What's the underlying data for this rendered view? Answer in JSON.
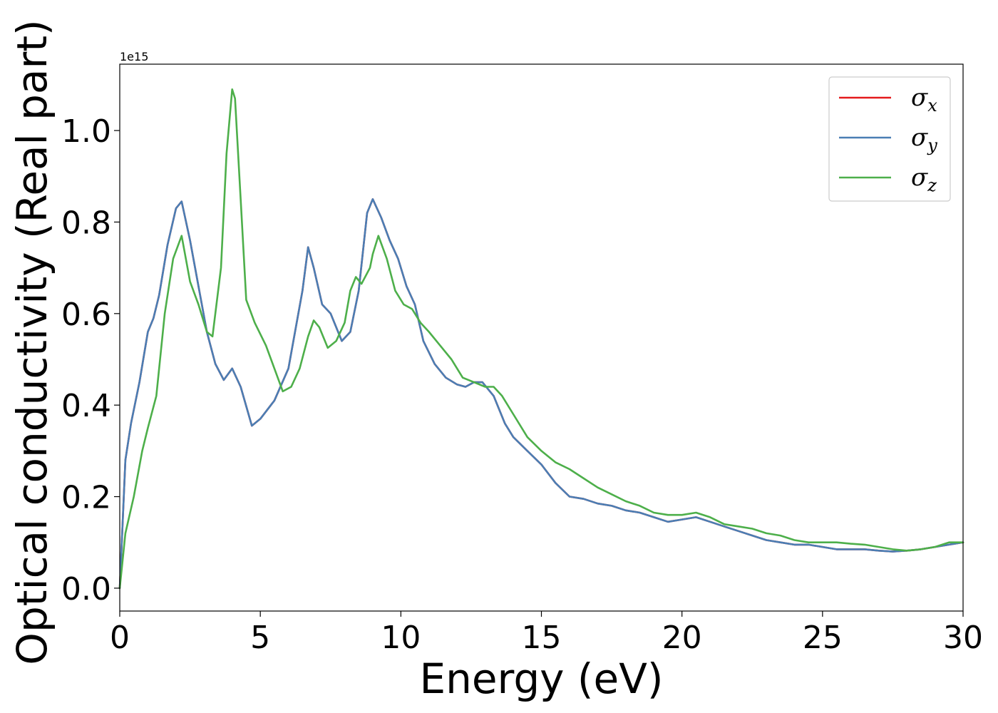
{
  "chart_data": {
    "type": "line",
    "xlabel": "Energy (eV)",
    "ylabel": "Optical conductivity (Real part)",
    "y_offset_label": "1e15",
    "xlim": [
      0,
      30
    ],
    "ylim": [
      -0.05,
      1.145
    ],
    "x_ticks": [
      0,
      5,
      10,
      15,
      20,
      25,
      30
    ],
    "x_tick_labels": [
      "0",
      "5",
      "10",
      "15",
      "20",
      "25",
      "30"
    ],
    "y_ticks": [
      0.0,
      0.2,
      0.4,
      0.6,
      0.8,
      1.0
    ],
    "y_tick_labels": [
      "0.0",
      "0.2",
      "0.4",
      "0.6",
      "0.8",
      "1.0"
    ],
    "grid": false,
    "legend_position": "top-right",
    "series": [
      {
        "name": "σx",
        "legend_base": "σ",
        "legend_sub": "x",
        "color": "#e41a1c",
        "x": [
          0,
          0.2,
          0.4,
          0.7,
          1.0,
          1.2,
          1.4,
          1.7,
          2.0,
          2.2,
          2.5,
          2.8,
          3.1,
          3.4,
          3.7,
          4.0,
          4.3,
          4.7,
          5.0,
          5.5,
          6.0,
          6.5,
          6.7,
          6.9,
          7.2,
          7.5,
          7.9,
          8.2,
          8.5,
          8.8,
          9.0,
          9.3,
          9.6,
          9.9,
          10.2,
          10.5,
          10.8,
          11.2,
          11.6,
          12.0,
          12.3,
          12.6,
          12.9,
          13.3,
          13.7,
          14.0,
          14.5,
          15.0,
          15.5,
          16.0,
          16.5,
          17.0,
          17.5,
          18.0,
          18.5,
          19.0,
          19.5,
          20.0,
          20.5,
          21.0,
          21.5,
          22.0,
          22.5,
          23.0,
          23.5,
          24.0,
          24.5,
          25.0,
          25.5,
          26.0,
          26.5,
          27.0,
          27.5,
          28.0,
          28.5,
          29.0,
          29.5,
          30.0
        ],
        "y": [
          0.0,
          0.28,
          0.36,
          0.45,
          0.56,
          0.59,
          0.64,
          0.75,
          0.83,
          0.845,
          0.76,
          0.66,
          0.56,
          0.49,
          0.455,
          0.48,
          0.44,
          0.355,
          0.37,
          0.41,
          0.48,
          0.65,
          0.745,
          0.7,
          0.62,
          0.6,
          0.54,
          0.56,
          0.65,
          0.82,
          0.85,
          0.81,
          0.76,
          0.72,
          0.66,
          0.62,
          0.54,
          0.49,
          0.46,
          0.445,
          0.44,
          0.45,
          0.45,
          0.42,
          0.36,
          0.33,
          0.3,
          0.27,
          0.23,
          0.2,
          0.195,
          0.185,
          0.18,
          0.17,
          0.165,
          0.155,
          0.145,
          0.15,
          0.155,
          0.145,
          0.135,
          0.125,
          0.115,
          0.105,
          0.1,
          0.095,
          0.095,
          0.09,
          0.085,
          0.085,
          0.085,
          0.082,
          0.08,
          0.082,
          0.085,
          0.09,
          0.095,
          0.1
        ]
      },
      {
        "name": "σy",
        "legend_base": "σ",
        "legend_sub": "y",
        "color": "#4a7eb4",
        "x": [
          0,
          0.2,
          0.4,
          0.7,
          1.0,
          1.2,
          1.4,
          1.7,
          2.0,
          2.2,
          2.5,
          2.8,
          3.1,
          3.4,
          3.7,
          4.0,
          4.3,
          4.7,
          5.0,
          5.5,
          6.0,
          6.5,
          6.7,
          6.9,
          7.2,
          7.5,
          7.9,
          8.2,
          8.5,
          8.8,
          9.0,
          9.3,
          9.6,
          9.9,
          10.2,
          10.5,
          10.8,
          11.2,
          11.6,
          12.0,
          12.3,
          12.6,
          12.9,
          13.3,
          13.7,
          14.0,
          14.5,
          15.0,
          15.5,
          16.0,
          16.5,
          17.0,
          17.5,
          18.0,
          18.5,
          19.0,
          19.5,
          20.0,
          20.5,
          21.0,
          21.5,
          22.0,
          22.5,
          23.0,
          23.5,
          24.0,
          24.5,
          25.0,
          25.5,
          26.0,
          26.5,
          27.0,
          27.5,
          28.0,
          28.5,
          29.0,
          29.5,
          30.0
        ],
        "y": [
          0.0,
          0.28,
          0.36,
          0.45,
          0.56,
          0.59,
          0.64,
          0.75,
          0.83,
          0.845,
          0.76,
          0.66,
          0.56,
          0.49,
          0.455,
          0.48,
          0.44,
          0.355,
          0.37,
          0.41,
          0.48,
          0.65,
          0.745,
          0.7,
          0.62,
          0.6,
          0.54,
          0.56,
          0.65,
          0.82,
          0.85,
          0.81,
          0.76,
          0.72,
          0.66,
          0.62,
          0.54,
          0.49,
          0.46,
          0.445,
          0.44,
          0.45,
          0.45,
          0.42,
          0.36,
          0.33,
          0.3,
          0.27,
          0.23,
          0.2,
          0.195,
          0.185,
          0.18,
          0.17,
          0.165,
          0.155,
          0.145,
          0.15,
          0.155,
          0.145,
          0.135,
          0.125,
          0.115,
          0.105,
          0.1,
          0.095,
          0.095,
          0.09,
          0.085,
          0.085,
          0.085,
          0.082,
          0.08,
          0.082,
          0.085,
          0.09,
          0.095,
          0.1
        ]
      },
      {
        "name": "σz",
        "legend_base": "σ",
        "legend_sub": "z",
        "color": "#4daf4a",
        "x": [
          0,
          0.2,
          0.5,
          0.8,
          1.0,
          1.3,
          1.6,
          1.9,
          2.2,
          2.5,
          2.8,
          3.1,
          3.3,
          3.6,
          3.8,
          4.0,
          4.1,
          4.3,
          4.5,
          4.8,
          5.2,
          5.5,
          5.8,
          6.1,
          6.4,
          6.7,
          6.9,
          7.1,
          7.4,
          7.7,
          8.0,
          8.2,
          8.4,
          8.6,
          8.9,
          9.0,
          9.2,
          9.5,
          9.8,
          10.1,
          10.4,
          10.7,
          11.0,
          11.4,
          11.8,
          12.2,
          12.6,
          13.0,
          13.3,
          13.6,
          14.0,
          14.5,
          15.0,
          15.5,
          16.0,
          16.5,
          17.0,
          17.5,
          18.0,
          18.5,
          19.0,
          19.5,
          20.0,
          20.5,
          21.0,
          21.5,
          22.0,
          22.5,
          23.0,
          23.5,
          24.0,
          24.5,
          25.0,
          25.5,
          26.0,
          26.5,
          27.0,
          27.5,
          28.0,
          28.5,
          29.0,
          29.5,
          30.0
        ],
        "y": [
          0.0,
          0.12,
          0.2,
          0.3,
          0.35,
          0.42,
          0.6,
          0.72,
          0.77,
          0.67,
          0.62,
          0.56,
          0.55,
          0.7,
          0.95,
          1.09,
          1.07,
          0.85,
          0.63,
          0.58,
          0.53,
          0.48,
          0.43,
          0.44,
          0.48,
          0.55,
          0.585,
          0.57,
          0.525,
          0.54,
          0.58,
          0.65,
          0.68,
          0.665,
          0.7,
          0.73,
          0.77,
          0.72,
          0.65,
          0.62,
          0.61,
          0.58,
          0.56,
          0.53,
          0.5,
          0.46,
          0.45,
          0.44,
          0.44,
          0.42,
          0.38,
          0.33,
          0.3,
          0.275,
          0.26,
          0.24,
          0.22,
          0.205,
          0.19,
          0.18,
          0.165,
          0.16,
          0.16,
          0.165,
          0.155,
          0.14,
          0.135,
          0.13,
          0.12,
          0.115,
          0.105,
          0.1,
          0.1,
          0.1,
          0.097,
          0.095,
          0.09,
          0.085,
          0.082,
          0.085,
          0.09,
          0.1,
          0.1
        ]
      }
    ]
  }
}
